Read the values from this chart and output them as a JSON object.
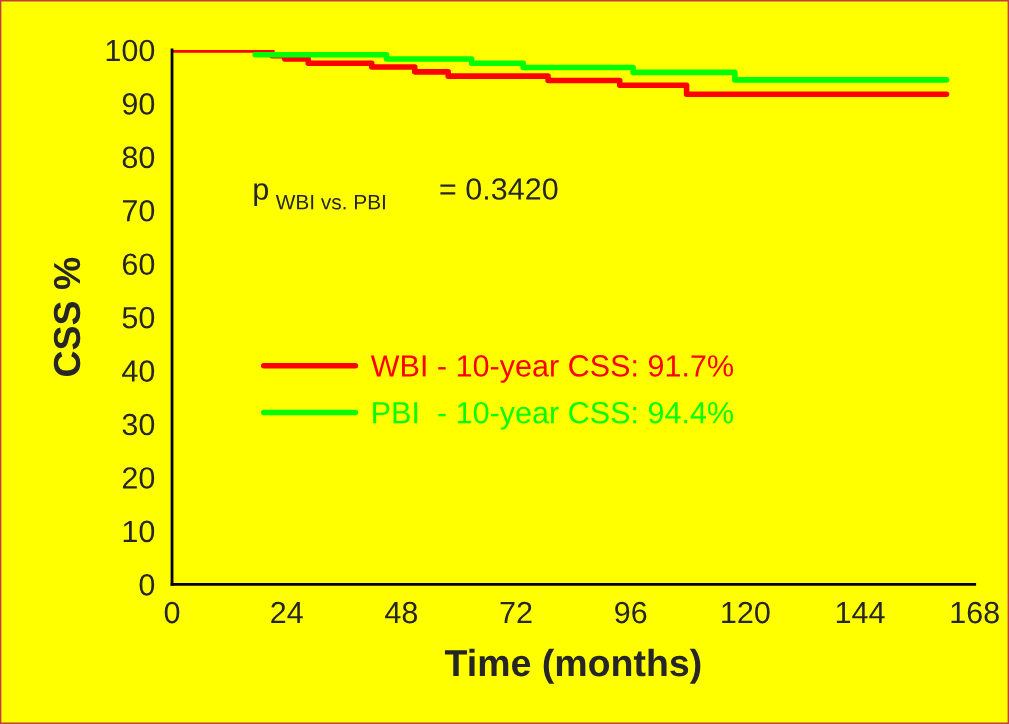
{
  "chart_data": {
    "type": "step",
    "xlabel": "Time (months)",
    "ylabel": "CSS %",
    "xlim": [
      0,
      168
    ],
    "xticks": [
      0,
      24,
      48,
      72,
      96,
      120,
      144,
      168
    ],
    "ylim": [
      0,
      100
    ],
    "yticks": [
      0,
      10,
      20,
      30,
      40,
      50,
      60,
      70,
      80,
      90,
      100
    ],
    "series": [
      {
        "name": "WBI - 10-year CSS: 91.7%",
        "color": "#ff0000",
        "x": [
          0,
          20.9,
          23.6,
          28.5,
          41.8,
          50.8,
          57.8,
          78.7,
          93.7,
          107.7,
          162.1
        ],
        "values": [
          100,
          98.9,
          98.3,
          97.5,
          96.8,
          95.9,
          95.1,
          94.3,
          93.4,
          91.7,
          91.7
        ]
      },
      {
        "name": "PBI  - 10-year CSS: 94.4%",
        "color": "#00ff00",
        "x": [
          17.4,
          44.9,
          62.7,
          73.5,
          96.5,
          117.8,
          162.1
        ],
        "values": [
          99.1,
          98.3,
          97.5,
          96.7,
          95.8,
          94.4,
          94.4
        ]
      }
    ],
    "annotations": [
      "p$_{WBI vs. PBI}$ = 0.3420"
    ],
    "legend": "left",
    "grid": false,
    "marker": "none",
    "line_style": "solid"
  }
}
